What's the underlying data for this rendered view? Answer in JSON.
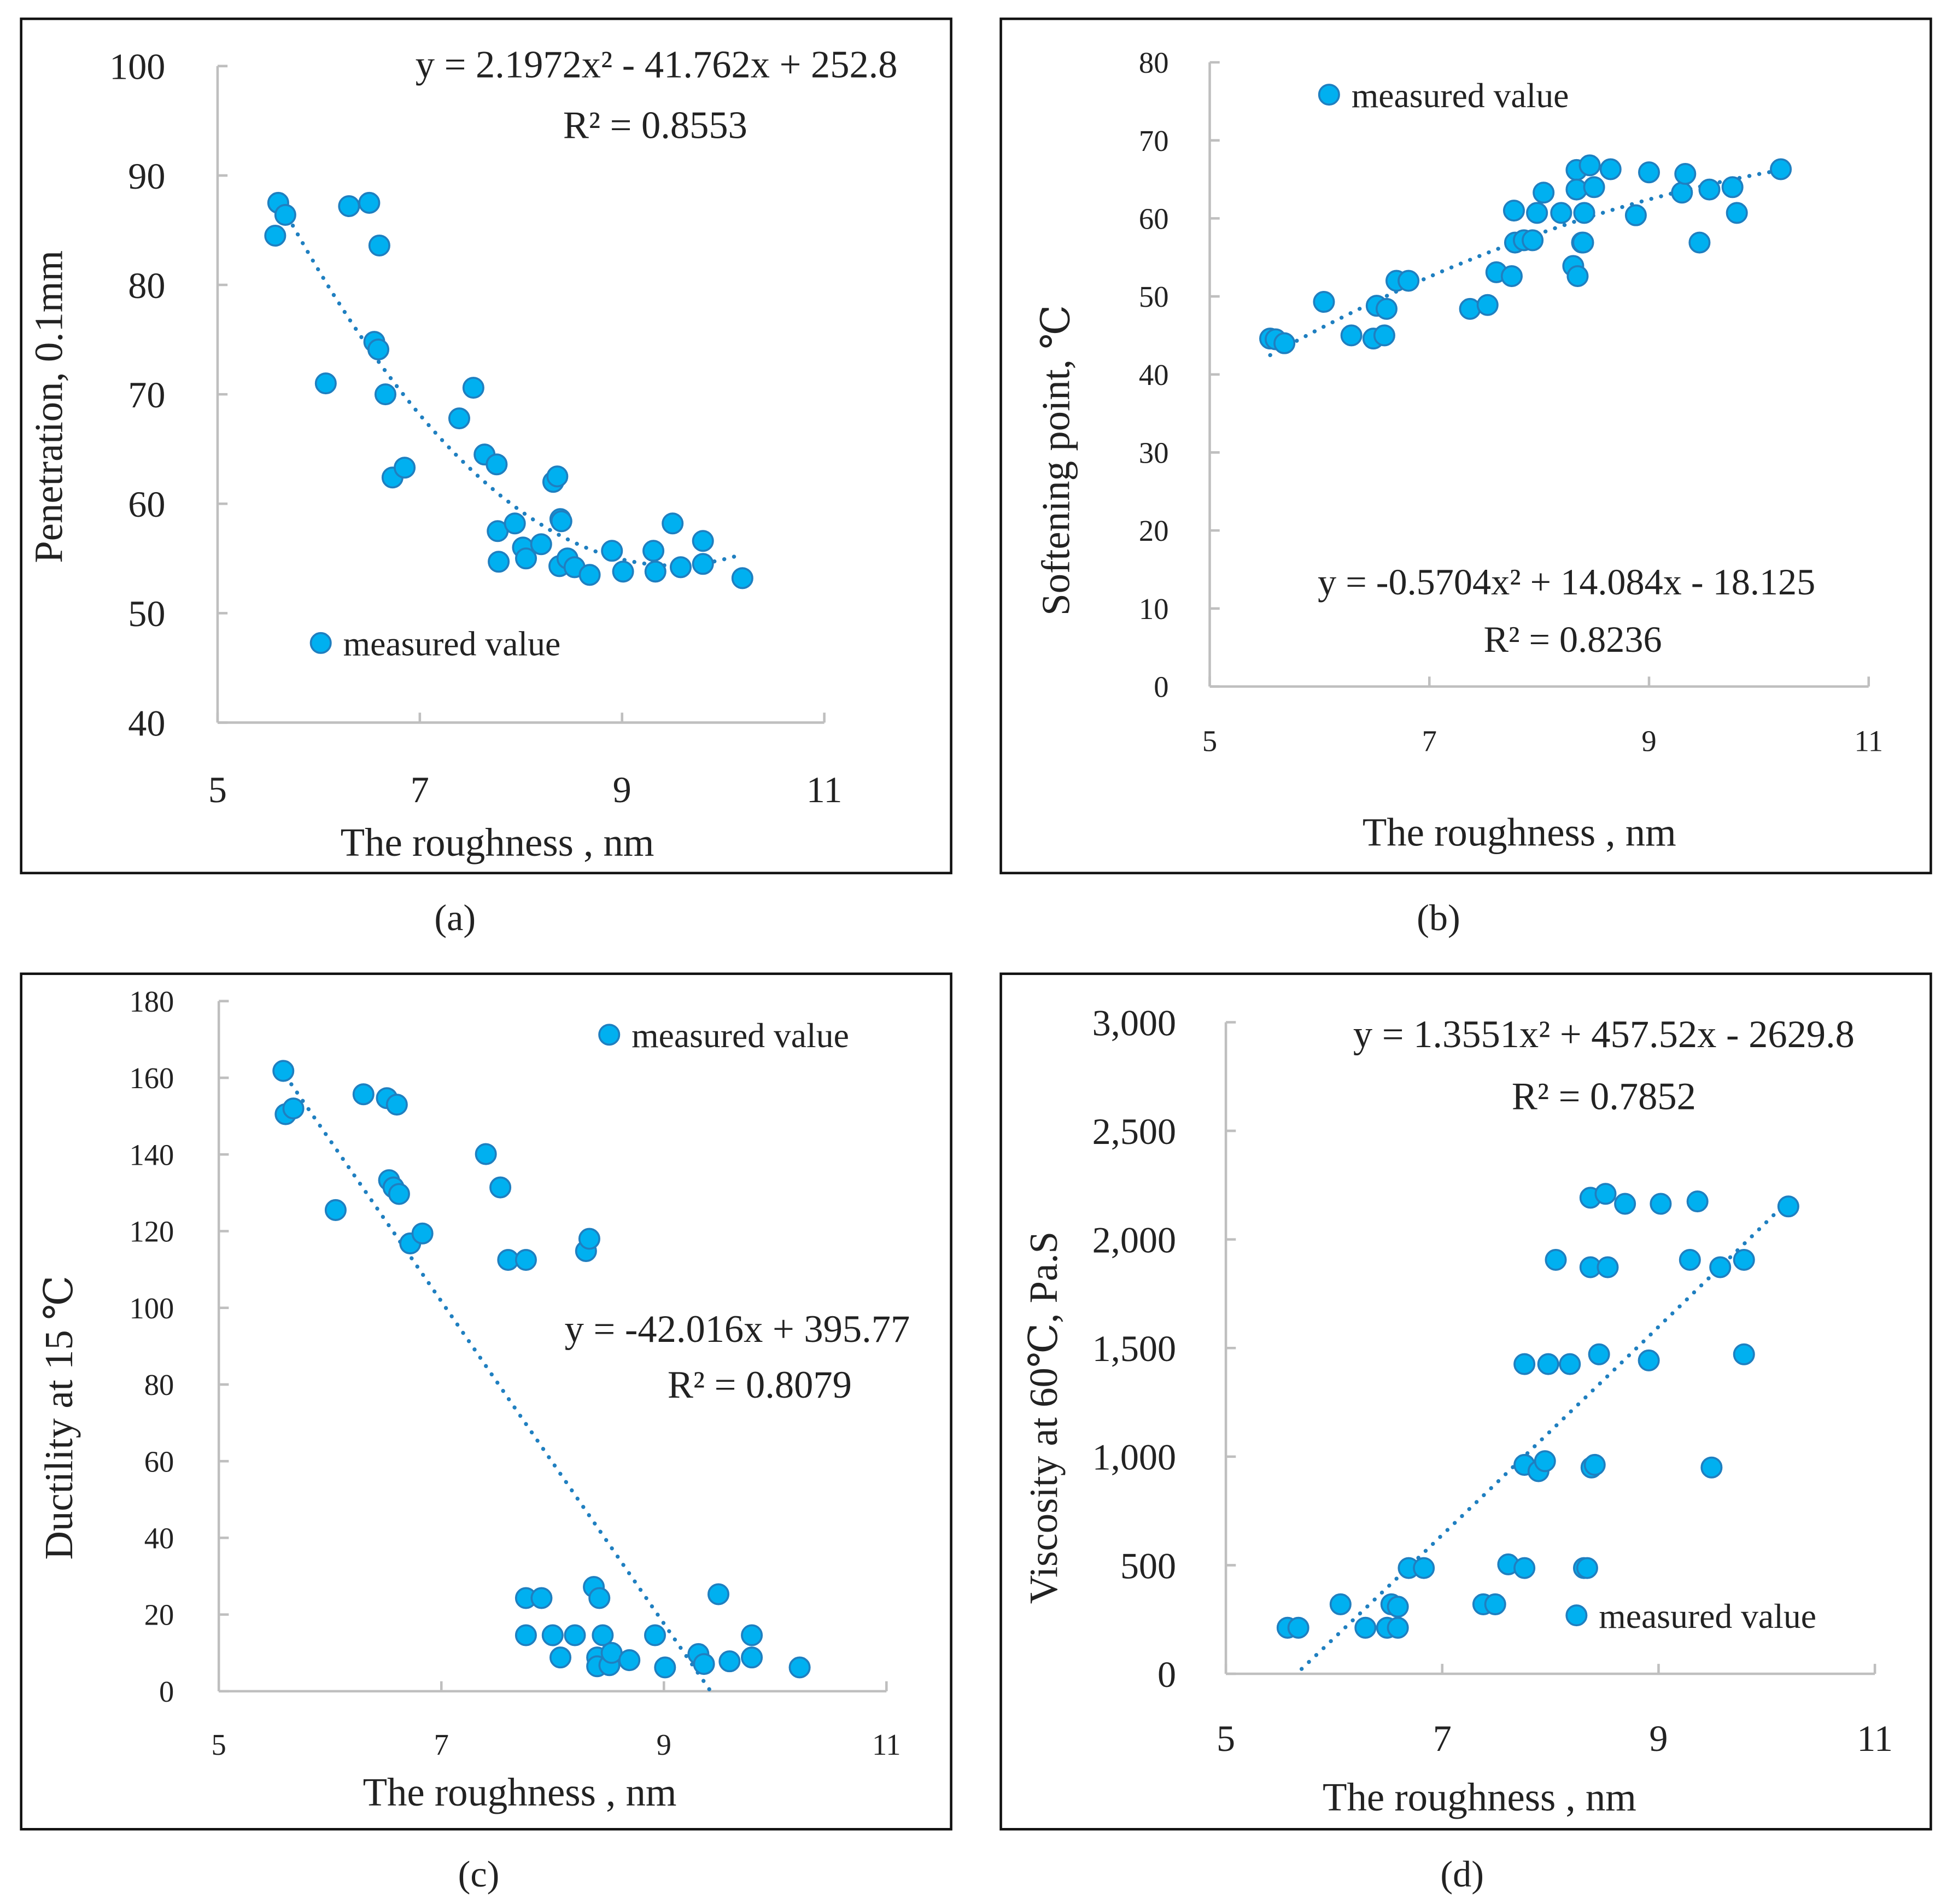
{
  "chart_data": [
    {
      "type": "scatter",
      "caption": "(a)",
      "xlabel": "The roughness , nm",
      "ylabel": "Penetration, 0.1mm",
      "xlim": [
        5,
        11
      ],
      "ylim": [
        40,
        100
      ],
      "xticks": [
        5,
        7,
        9,
        11
      ],
      "yticks": [
        40,
        50,
        60,
        70,
        80,
        90,
        100
      ],
      "ytick_labels": [
        "40",
        "50",
        "60",
        "70",
        "80",
        "90",
        "100"
      ],
      "xtick_labels": [
        "5",
        "7",
        "9",
        "11"
      ],
      "legend": "measured value",
      "legend_position": "bottom-left",
      "grid": false,
      "trendline": {
        "kind": "poly2",
        "coef": [
          2.1972,
          -41.762,
          252.8
        ],
        "xrange": [
          5.6,
          10.2
        ],
        "equation": "y = 2.1972x² - 41.762x + 252.8",
        "r2_label": "R² = 0.8553"
      },
      "series": [
        {
          "name": "measured value",
          "points": [
            [
              5.6,
              87.5
            ],
            [
              5.67,
              86.4
            ],
            [
              5.57,
              84.5
            ],
            [
              6.3,
              87.2
            ],
            [
              6.5,
              87.5
            ],
            [
              6.6,
              83.6
            ],
            [
              6.07,
              71
            ],
            [
              6.55,
              74.8
            ],
            [
              6.59,
              74.1
            ],
            [
              6.66,
              70
            ],
            [
              6.73,
              62.4
            ],
            [
              6.85,
              63.3
            ],
            [
              7.39,
              67.8
            ],
            [
              7.53,
              70.6
            ],
            [
              7.64,
              64.5
            ],
            [
              7.76,
              63.6
            ],
            [
              8.32,
              62
            ],
            [
              8.36,
              62.5
            ],
            [
              8.39,
              58.6
            ],
            [
              8.4,
              58.4
            ],
            [
              7.77,
              57.5
            ],
            [
              7.94,
              58.2
            ],
            [
              8.02,
              56
            ],
            [
              8.05,
              55
            ],
            [
              7.78,
              54.7
            ],
            [
              8.2,
              56.3
            ],
            [
              8.38,
              54.3
            ],
            [
              8.46,
              55
            ],
            [
              8.53,
              54.2
            ],
            [
              8.68,
              53.5
            ],
            [
              8.9,
              55.7
            ],
            [
              9.01,
              53.8
            ],
            [
              9.31,
              55.7
            ],
            [
              9.33,
              53.8
            ],
            [
              9.5,
              58.2
            ],
            [
              9.58,
              54.2
            ],
            [
              9.8,
              56.6
            ],
            [
              9.8,
              54.5
            ],
            [
              10.19,
              53.2
            ]
          ]
        }
      ]
    },
    {
      "type": "scatter",
      "caption": "(b)",
      "xlabel": "The roughness , nm",
      "ylabel": "Softening point, ℃",
      "xlim": [
        5,
        11
      ],
      "ylim": [
        0,
        80
      ],
      "xticks": [
        5,
        7,
        9,
        11
      ],
      "yticks": [
        0,
        10,
        20,
        30,
        40,
        50,
        60,
        70,
        80
      ],
      "ytick_labels": [
        "0",
        "10",
        "20",
        "30",
        "40",
        "50",
        "60",
        "70",
        "80"
      ],
      "xtick_labels": [
        "5",
        "7",
        "9",
        "11"
      ],
      "legend": "measured value",
      "legend_position": "top-left",
      "grid": false,
      "trendline": {
        "kind": "poly2",
        "coef": [
          -0.5704,
          14.084,
          -18.125
        ],
        "xrange": [
          5.55,
          10.2
        ],
        "equation": "y = -0.5704x² + 14.084x - 18.125",
        "r2_label": "R² = 0.8236"
      },
      "series": [
        {
          "name": "measured value",
          "points": [
            [
              5.55,
              44.6
            ],
            [
              5.6,
              44.5
            ],
            [
              5.68,
              44
            ],
            [
              6.04,
              49.3
            ],
            [
              6.29,
              45
            ],
            [
              6.49,
              44.6
            ],
            [
              6.59,
              45
            ],
            [
              6.52,
              48.8
            ],
            [
              6.61,
              48.4
            ],
            [
              6.7,
              52
            ],
            [
              6.81,
              52
            ],
            [
              7.37,
              48.4
            ],
            [
              7.53,
              48.9
            ],
            [
              7.61,
              53.1
            ],
            [
              7.75,
              52.6
            ],
            [
              7.77,
              61
            ],
            [
              7.78,
              56.9
            ],
            [
              7.86,
              57.2
            ],
            [
              7.94,
              57.2
            ],
            [
              7.98,
              60.7
            ],
            [
              8.04,
              63.3
            ],
            [
              8.2,
              60.7
            ],
            [
              8.31,
              53.9
            ],
            [
              8.35,
              52.6
            ],
            [
              8.39,
              56.9
            ],
            [
              8.4,
              56.9
            ],
            [
              8.34,
              66.2
            ],
            [
              8.46,
              66.8
            ],
            [
              8.34,
              63.7
            ],
            [
              8.5,
              64
            ],
            [
              8.41,
              60.7
            ],
            [
              8.65,
              66.3
            ],
            [
              8.88,
              60.4
            ],
            [
              9.0,
              65.9
            ],
            [
              9.3,
              63.3
            ],
            [
              9.33,
              65.7
            ],
            [
              9.46,
              56.9
            ],
            [
              9.55,
              63.7
            ],
            [
              9.76,
              64
            ],
            [
              9.8,
              60.7
            ],
            [
              10.2,
              66.3
            ]
          ]
        }
      ]
    },
    {
      "type": "scatter",
      "caption": "(c)",
      "xlabel": "The roughness , nm",
      "ylabel": "Ductility at 15 ℃",
      "xlim": [
        5,
        11
      ],
      "ylim": [
        0,
        180
      ],
      "xticks": [
        5,
        7,
        9,
        11
      ],
      "yticks": [
        0,
        20,
        40,
        60,
        80,
        100,
        120,
        140,
        160,
        180
      ],
      "ytick_labels": [
        "0",
        "20",
        "40",
        "60",
        "80",
        "100",
        "120",
        "140",
        "160",
        "180"
      ],
      "xtick_labels": [
        "5",
        "7",
        "9",
        "11"
      ],
      "legend": "measured value",
      "legend_position": "top-right",
      "grid": false,
      "trendline": {
        "kind": "linear",
        "coef": [
          0,
          -42.016,
          395.77
        ],
        "xrange": [
          5.6,
          9.42
        ],
        "equation": "y = -42.016x + 395.77",
        "r2_label": "R² = 0.8079"
      },
      "series": [
        {
          "name": "measured value",
          "points": [
            [
              5.58,
              161.8
            ],
            [
              5.6,
              150.5
            ],
            [
              5.67,
              152
            ],
            [
              6.05,
              125.5
            ],
            [
              6.3,
              155.7
            ],
            [
              6.51,
              154.7
            ],
            [
              6.6,
              153
            ],
            [
              6.53,
              133.3
            ],
            [
              6.57,
              131.4
            ],
            [
              6.62,
              129.7
            ],
            [
              6.72,
              116.8
            ],
            [
              6.83,
              119.4
            ],
            [
              7.4,
              140.1
            ],
            [
              7.53,
              131.4
            ],
            [
              7.6,
              112.5
            ],
            [
              7.76,
              112.5
            ],
            [
              8.3,
              114.8
            ],
            [
              8.33,
              118
            ],
            [
              7.76,
              24.3
            ],
            [
              7.9,
              24.3
            ],
            [
              7.76,
              14.6
            ],
            [
              8.0,
              14.6
            ],
            [
              8.07,
              8.8
            ],
            [
              8.2,
              14.6
            ],
            [
              8.37,
              27.2
            ],
            [
              8.42,
              24.3
            ],
            [
              8.45,
              14.6
            ],
            [
              8.4,
              8.8
            ],
            [
              8.4,
              6.5
            ],
            [
              8.51,
              6.8
            ],
            [
              8.53,
              10
            ],
            [
              8.69,
              8.1
            ],
            [
              8.92,
              14.6
            ],
            [
              9.01,
              6.2
            ],
            [
              9.31,
              9.7
            ],
            [
              9.36,
              7.1
            ],
            [
              9.49,
              25.3
            ],
            [
              9.59,
              7.8
            ],
            [
              9.79,
              14.6
            ],
            [
              9.79,
              8.8
            ],
            [
              10.22,
              6.2
            ]
          ]
        }
      ]
    },
    {
      "type": "scatter",
      "caption": "(d)",
      "xlabel": "The roughness , nm",
      "ylabel": "Viscosity at 60℃, Pa.S",
      "xlim": [
        5,
        11
      ],
      "ylim": [
        0,
        3000
      ],
      "xticks": [
        5,
        7,
        9,
        11
      ],
      "yticks": [
        0,
        500,
        1000,
        1500,
        2000,
        2500,
        3000
      ],
      "ytick_labels": [
        "0",
        "500",
        "1,000",
        "1,500",
        "2,000",
        "2,500",
        "3,000"
      ],
      "xtick_labels": [
        "5",
        "7",
        "9",
        "11"
      ],
      "legend": "measured value",
      "legend_position": "bottom-right",
      "grid": false,
      "trendline": {
        "kind": "poly2",
        "coef": [
          1.3551,
          457.52,
          -2629.8
        ],
        "xrange": [
          5.7,
          10.2
        ],
        "equation": "y = 1.3551x² + 457.52x - 2629.8",
        "r2_label": "R² = 0.7852"
      },
      "series": [
        {
          "name": "measured value",
          "points": [
            [
              5.57,
              212
            ],
            [
              5.67,
              212
            ],
            [
              6.06,
              320
            ],
            [
              6.29,
              212
            ],
            [
              6.49,
              212
            ],
            [
              6.59,
              212
            ],
            [
              6.53,
              320
            ],
            [
              6.59,
              309
            ],
            [
              6.69,
              487
            ],
            [
              6.83,
              487
            ],
            [
              7.38,
              320
            ],
            [
              7.49,
              320
            ],
            [
              7.61,
              504
            ],
            [
              7.76,
              487
            ],
            [
              7.76,
              962
            ],
            [
              7.89,
              933
            ],
            [
              7.95,
              979
            ],
            [
              7.76,
              1426
            ],
            [
              7.98,
              1426
            ],
            [
              8.18,
              1426
            ],
            [
              8.05,
              1906
            ],
            [
              8.31,
              487
            ],
            [
              8.34,
              487
            ],
            [
              8.38,
              950
            ],
            [
              8.41,
              962
            ],
            [
              8.37,
              2192
            ],
            [
              8.51,
              2210
            ],
            [
              8.37,
              1872
            ],
            [
              8.53,
              1872
            ],
            [
              8.45,
              1471
            ],
            [
              8.69,
              2164
            ],
            [
              8.91,
              1443
            ],
            [
              9.02,
              2164
            ],
            [
              9.29,
              1906
            ],
            [
              9.36,
              2175
            ],
            [
              9.49,
              950
            ],
            [
              9.57,
              1872
            ],
            [
              9.79,
              1906
            ],
            [
              9.79,
              1471
            ],
            [
              10.2,
              2152
            ]
          ]
        }
      ]
    }
  ]
}
